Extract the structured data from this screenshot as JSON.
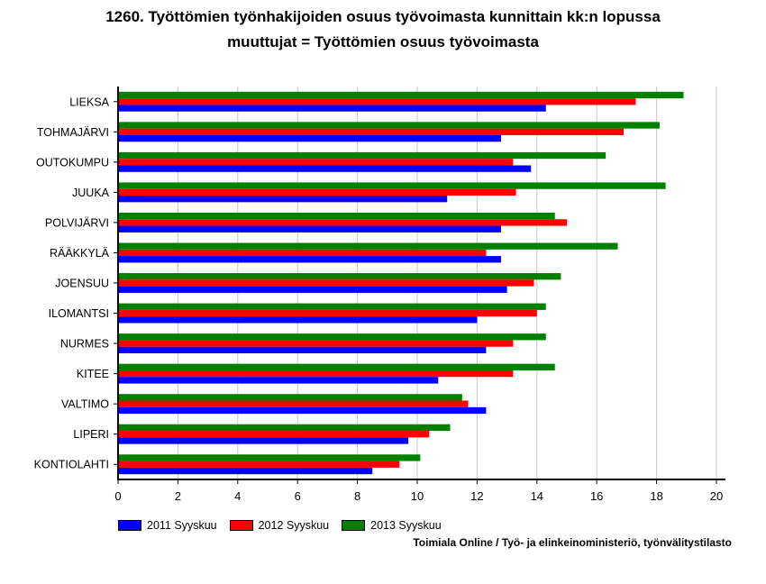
{
  "title": "1260. Työttömien työnhakijoiden osuus työvoimasta kunnittain kk:n lopussa",
  "subtitle": "muuttujat = Työttömien osuus työvoimasta",
  "source": "Toimiala Online / Työ- ja elinkeinoministeriö, työnvälitystilasto",
  "chart_data": {
    "type": "bar",
    "orientation": "horizontal",
    "categories": [
      "LIEKSA",
      "TOHMAJÄRVI",
      "OUTOKUMPU",
      "JUUKA",
      "POLVIJÄRVI",
      "RÄÄKKYLÄ",
      "JOENSUU",
      "ILOMANTSI",
      "NURMES",
      "KITEE",
      "VALTIMO",
      "LIPERI",
      "KONTIOLAHTI"
    ],
    "series": [
      {
        "name": "2011 Syyskuu",
        "color": "#0000ff",
        "values": [
          14.3,
          12.8,
          13.8,
          11.0,
          12.8,
          12.8,
          13.0,
          12.0,
          12.3,
          10.7,
          12.3,
          9.7,
          8.5
        ]
      },
      {
        "name": "2012 Syyskuu",
        "color": "#ff0000",
        "values": [
          17.3,
          16.9,
          13.2,
          13.3,
          15.0,
          12.3,
          13.9,
          14.0,
          13.2,
          13.2,
          11.7,
          10.4,
          9.4
        ]
      },
      {
        "name": "2013 Syyskuu",
        "color": "#008000",
        "values": [
          18.9,
          18.1,
          16.3,
          18.3,
          14.6,
          16.7,
          14.8,
          14.3,
          14.3,
          14.6,
          11.5,
          11.1,
          10.1
        ]
      }
    ],
    "xlim": [
      0,
      20
    ],
    "xticks": [
      0,
      2,
      4,
      6,
      8,
      10,
      12,
      14,
      16,
      18,
      20
    ],
    "grid": "vertical",
    "legend": "bottom-left"
  }
}
